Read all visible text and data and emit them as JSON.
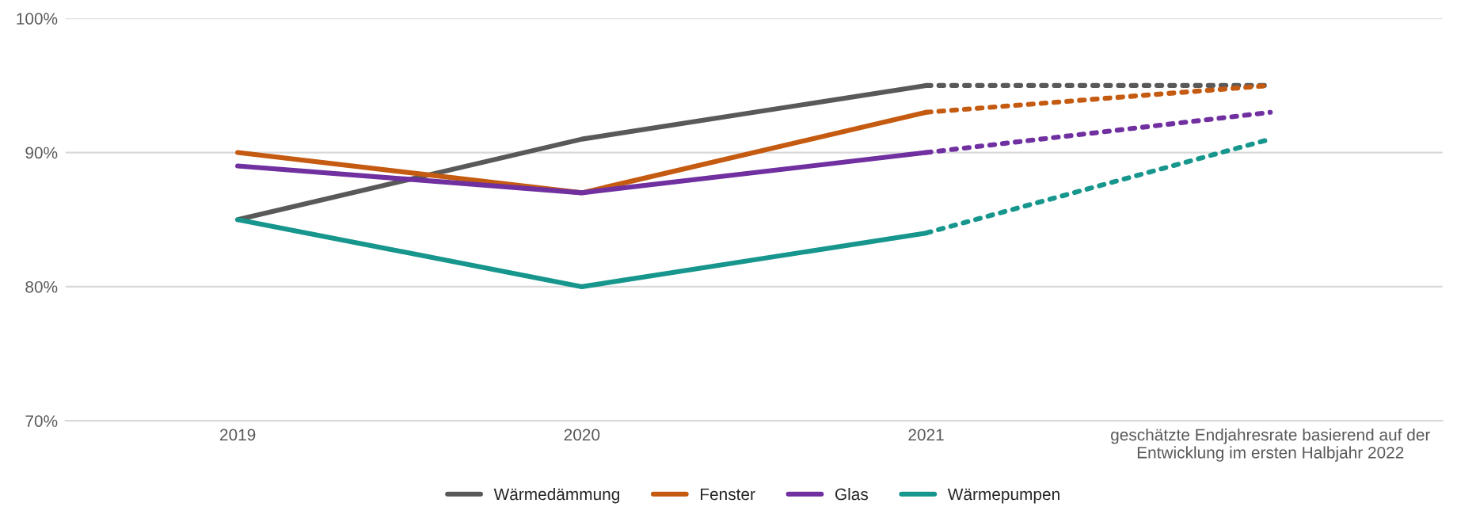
{
  "chart_data": {
    "type": "line",
    "categories": [
      "2019",
      "2020",
      "2021",
      "geschätzte Endjahresrate basierend auf der\nEntwicklung im ersten Halbjahr 2022"
    ],
    "series": [
      {
        "name": "Wärmedämmung",
        "color": "#595959",
        "values": [
          85,
          91,
          95,
          null
        ],
        "line_style": "solid"
      },
      {
        "name": "Fenster",
        "color": "#c55a11",
        "values": [
          90,
          87,
          93,
          null
        ],
        "line_style": "solid"
      },
      {
        "name": "Glas",
        "color": "#7030a0",
        "values": [
          89,
          87,
          90,
          null
        ],
        "line_style": "solid"
      },
      {
        "name": "Wärmepumpen",
        "color": "#16968c",
        "values": [
          85,
          80,
          84,
          null
        ],
        "line_style": "solid"
      },
      {
        "color": "#595959",
        "values": [
          null,
          null,
          95,
          95
        ],
        "line_style": "dotted"
      },
      {
        "color": "#c55a11",
        "values": [
          null,
          null,
          93,
          95
        ],
        "line_style": "dotted"
      },
      {
        "color": "#7030a0",
        "values": [
          null,
          null,
          90,
          93
        ],
        "line_style": "dotted"
      },
      {
        "color": "#16968c",
        "values": [
          null,
          null,
          84,
          91
        ],
        "line_style": "dotted"
      }
    ],
    "ylim": [
      70,
      100
    ],
    "yticks": [
      {
        "value": 70,
        "label": "70%"
      },
      {
        "value": 80,
        "label": "80%"
      },
      {
        "value": 90,
        "label": "90%"
      },
      {
        "value": 100,
        "label": "100%"
      }
    ],
    "grid": "y",
    "legend": "bottom",
    "marker": "none"
  }
}
